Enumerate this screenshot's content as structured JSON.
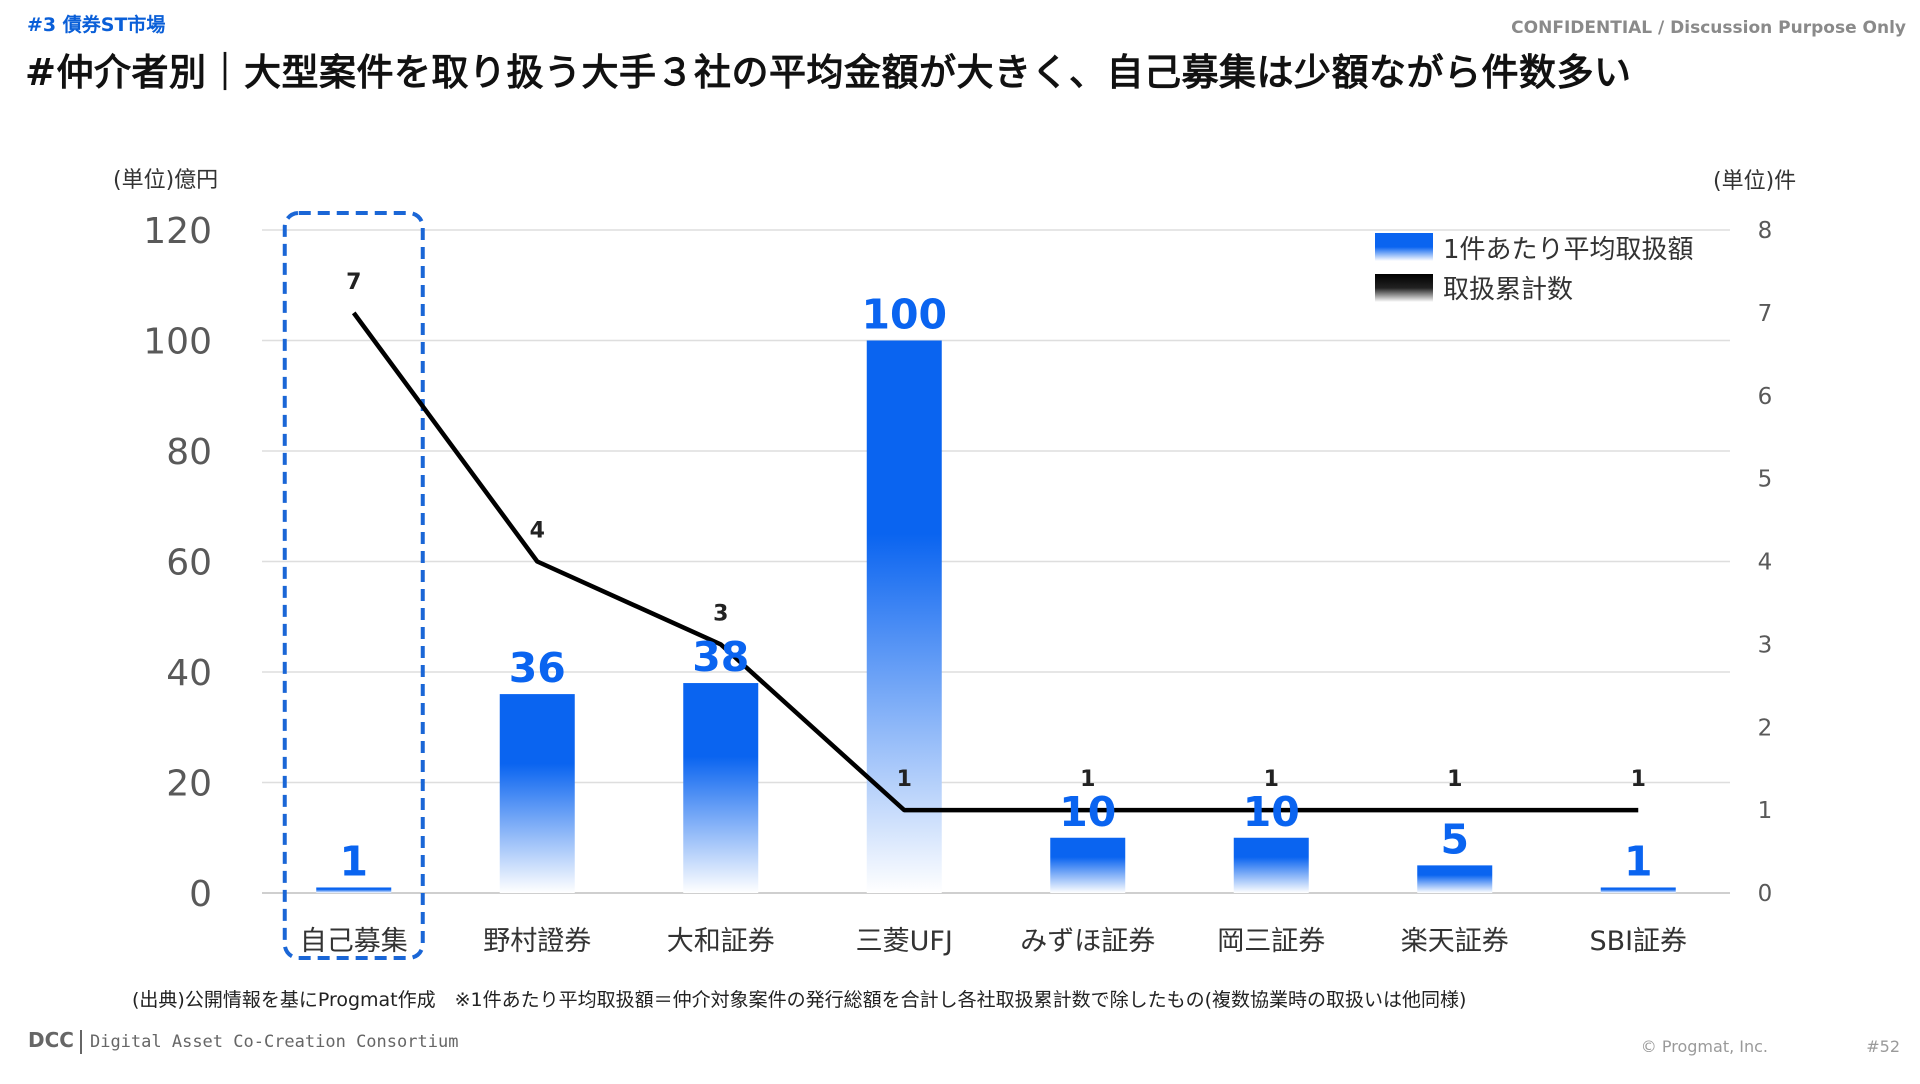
{
  "header": {
    "section_tag": "#3 債券ST市場",
    "confidential": "CONFIDENTIAL / Discussion Purpose Only",
    "title": "#仲介者別｜大型案件を取り扱う大手３社の平均金額が大きく、自己募集は少額ながら件数多い"
  },
  "chart_data": {
    "type": "bar",
    "title": "",
    "categories": [
      "自己募集",
      "野村證券",
      "大和証券",
      "三菱UFJ",
      "みずほ証券",
      "岡三証券",
      "楽天証券",
      "SBI証券"
    ],
    "series": [
      {
        "name": "1件あたり平均取扱額",
        "type": "bar",
        "axis": "left",
        "values": [
          1,
          36,
          38,
          100,
          10,
          10,
          5,
          1
        ],
        "color": "#0a64f0"
      },
      {
        "name": "取扱累計数",
        "type": "line",
        "axis": "right",
        "values": [
          7,
          4,
          3,
          1,
          1,
          1,
          1,
          1
        ],
        "color": "#000000"
      }
    ],
    "ylabel_left": "(単位)億円",
    "ylabel_right": "(単位)件",
    "ylim_left": [
      0,
      120
    ],
    "yticks_left": [
      0,
      20,
      40,
      60,
      80,
      100,
      120
    ],
    "ylim_right": [
      0,
      8
    ],
    "yticks_right": [
      0,
      1,
      2,
      3,
      4,
      5,
      6,
      7,
      8
    ],
    "grid": true,
    "legend": "top-right",
    "highlighted_category": "自己募集",
    "highlight_color": "#1a66d6"
  },
  "footer": {
    "source_note": "(出典)公開情報を基にProgmat作成　※1件あたり平均取扱額＝仲介対象案件の発行総額を合計し各社取扱累計数で除したもの(複数協業時の取扱いは他同様)",
    "logo_mark": "DCC",
    "logo_org": "Digital Asset Co-Creation Consortium",
    "copyright": "© Progmat, Inc.",
    "page_number": "#52"
  }
}
